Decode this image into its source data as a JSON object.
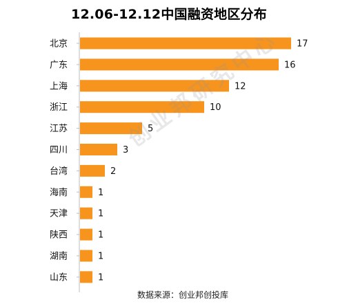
{
  "chart_data": {
    "type": "bar",
    "orientation": "horizontal",
    "title": "12.06-12.12中国融资地区分布",
    "categories": [
      "北京",
      "广东",
      "上海",
      "浙江",
      "江苏",
      "四川",
      "台湾",
      "海南",
      "天津",
      "陕西",
      "湖南",
      "山东"
    ],
    "values": [
      17,
      16,
      12,
      10,
      5,
      3,
      2,
      1,
      1,
      1,
      1,
      1
    ],
    "xlim": [
      0,
      17
    ],
    "grid": false,
    "bar_color": "#F7941D"
  },
  "watermark": "创业邦研究中心",
  "source": "数据来源：创业邦创投库"
}
